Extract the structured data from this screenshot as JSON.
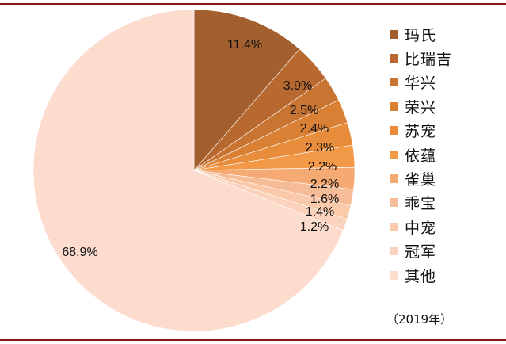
{
  "chart_data": {
    "type": "pie",
    "start_angle_deg": 0,
    "direction": "clockwise",
    "slices": [
      {
        "label": "玛氏",
        "value": 11.4,
        "display": "11.4%",
        "color": "#a35f2e"
      },
      {
        "label": "比瑞吉",
        "value": 3.9,
        "display": "3.9%",
        "color": "#b8692f"
      },
      {
        "label": "华兴",
        "value": 2.5,
        "display": "2.5%",
        "color": "#c97532"
      },
      {
        "label": "荣兴",
        "value": 2.4,
        "display": "2.4%",
        "color": "#d98035"
      },
      {
        "label": "苏宠",
        "value": 2.3,
        "display": "2.3%",
        "color": "#e88d3b"
      },
      {
        "label": "依蕴",
        "value": 2.2,
        "display": "2.2%",
        "color": "#f39a48"
      },
      {
        "label": "雀巢",
        "value": 2.2,
        "display": "2.2%",
        "color": "#f4aa72"
      },
      {
        "label": "乖宝",
        "value": 1.6,
        "display": "1.6%",
        "color": "#f6bb97"
      },
      {
        "label": "中宠",
        "value": 1.4,
        "display": "1.4%",
        "color": "#f9c9aa"
      },
      {
        "label": "冠军",
        "value": 1.2,
        "display": "1.2%",
        "color": "#fbd2bd"
      },
      {
        "label": "其他",
        "value": 68.9,
        "display": "68.9%",
        "color": "#fcdccd"
      }
    ],
    "legend_position": "right",
    "note": "（2019年）"
  }
}
